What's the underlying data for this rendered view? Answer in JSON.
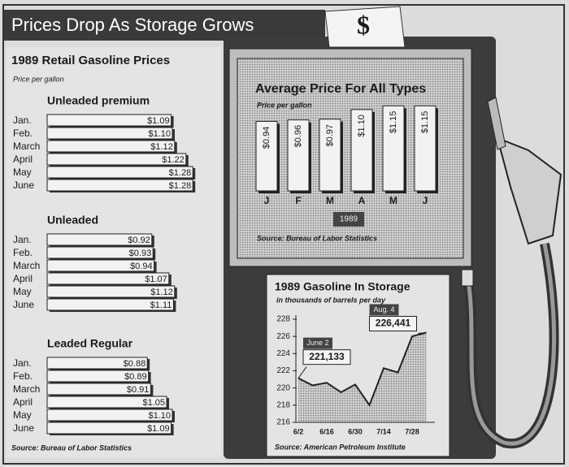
{
  "title": "Prices Drop As Storage Grows",
  "pump_sign": "$",
  "retail": {
    "title": "1989 Retail Gasoline Prices",
    "subtitle": "Price per gallon",
    "source": "Source: Bureau of Labor Statistics"
  },
  "chart_data": [
    {
      "type": "hbar",
      "title": "Unleaded premium",
      "color": "#f2f2f2",
      "categories": [
        "Jan.",
        "Feb.",
        "March",
        "April",
        "May",
        "June"
      ],
      "values": [
        1.09,
        1.1,
        1.12,
        1.22,
        1.28,
        1.28
      ],
      "value_labels": [
        "$1.09",
        "$1.10",
        "$1.12",
        "$1.22",
        "$1.28",
        "$1.28"
      ]
    },
    {
      "type": "hbar",
      "title": "Unleaded",
      "color": "#f2f2f2",
      "categories": [
        "Jan.",
        "Feb.",
        "March",
        "April",
        "May",
        "June"
      ],
      "values": [
        0.92,
        0.93,
        0.94,
        1.07,
        1.12,
        1.11
      ],
      "value_labels": [
        "$0.92",
        "$0.93",
        "$0.94",
        "$1.07",
        "$1.12",
        "$1.11"
      ]
    },
    {
      "type": "hbar",
      "title": "Leaded Regular",
      "color": "#f2f2f2",
      "categories": [
        "Jan.",
        "Feb.",
        "March",
        "April",
        "May",
        "June"
      ],
      "values": [
        0.88,
        0.89,
        0.91,
        1.05,
        1.1,
        1.09
      ],
      "value_labels": [
        "$0.88",
        "$0.89",
        "$0.91",
        "$1.05",
        "$1.10",
        "$1.09"
      ]
    },
    {
      "type": "bar",
      "title": "Average Price For All Types",
      "subtitle": "Price per gallon",
      "color": "#f2f2f2",
      "categories": [
        "J",
        "F",
        "M",
        "A",
        "M",
        "J"
      ],
      "values": [
        0.94,
        0.96,
        0.97,
        1.1,
        1.15,
        1.15
      ],
      "value_labels": [
        "$0.94",
        "$0.96",
        "$0.97",
        "$1.10",
        "$1.15",
        "$1.15"
      ],
      "x_label": "1989",
      "source": "Source: Bureau of Labor Statistics"
    },
    {
      "type": "line",
      "title": "1989 Gasoline In Storage",
      "subtitle": "in thousands of barrels per day",
      "color": "#222222",
      "categories": [
        "6/2",
        null,
        "6/16",
        null,
        "6/30",
        null,
        "7/14",
        null,
        "7/28",
        null
      ],
      "values": [
        221.133,
        220.3,
        220.6,
        219.5,
        220.4,
        218.0,
        222.3,
        221.8,
        226.0,
        226.441
      ],
      "value_labels": [
        "221,133",
        null,
        null,
        null,
        null,
        null,
        null,
        null,
        null,
        "226,441"
      ],
      "point_labels": [
        "June 2",
        null,
        null,
        null,
        null,
        null,
        null,
        null,
        null,
        "Aug. 4"
      ],
      "ylim": [
        216,
        228
      ],
      "yticks": [
        216,
        218,
        220,
        222,
        224,
        226,
        228
      ],
      "source": "Source: American Petroleum Institute"
    }
  ]
}
